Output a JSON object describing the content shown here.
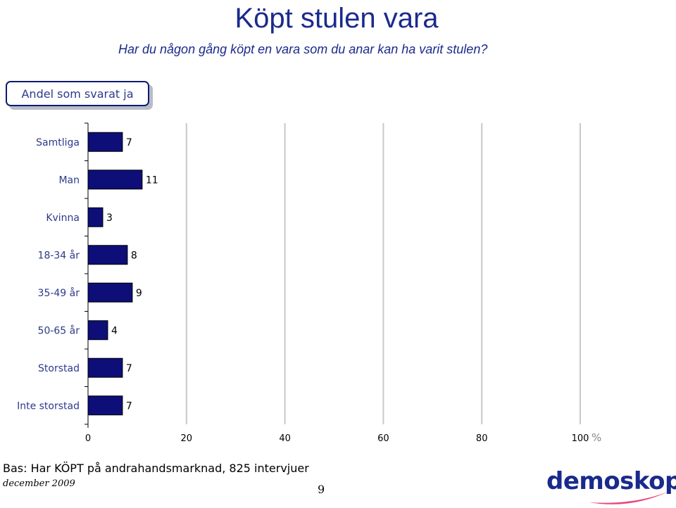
{
  "title": "Köpt stulen vara",
  "subtitle": "Har du någon gång köpt en vara som du anar kan ha varit stulen?",
  "badge": "Andel som svarat ja",
  "footer": {
    "base": "Bas: Har KÖPT på andrahandsmarknad, 825 intervjuer",
    "date": "december 2009",
    "page_number": "9"
  },
  "logo": "demoskop",
  "colors": {
    "bar_fill": "#0e0e78",
    "bar_stroke": "#000000",
    "grid": "#c8c8c8",
    "title": "#1a2a8c"
  },
  "chart_data": {
    "type": "bar",
    "orientation": "horizontal",
    "categories": [
      "Samtliga",
      "Man",
      "Kvinna",
      "18-34 år",
      "35-49 år",
      "50-65 år",
      "Storstad",
      "Inte storstad"
    ],
    "values": [
      7,
      11,
      3,
      8,
      9,
      4,
      7,
      7
    ],
    "xlim": [
      0,
      100
    ],
    "xticks": [
      0,
      20,
      40,
      60,
      80,
      100
    ],
    "unit": "%",
    "grid": true
  }
}
